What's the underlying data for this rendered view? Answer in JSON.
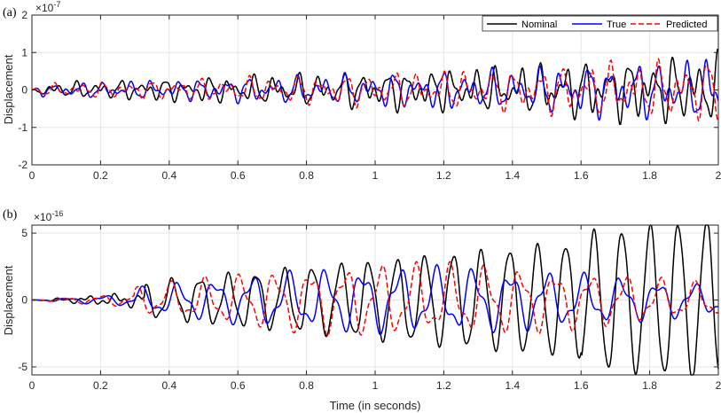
{
  "chart_data": [
    {
      "type": "line",
      "panel_label": "(a)",
      "exponent_label": "×10",
      "exponent_power": "-7",
      "xlabel": "",
      "ylabel": "Displacement",
      "xlim": [
        0,
        2
      ],
      "ylim": [
        -2,
        2
      ],
      "x_ticks": [
        0,
        0.2,
        0.4,
        0.6,
        0.8,
        1,
        1.2,
        1.4,
        1.6,
        1.8,
        2
      ],
      "x_tick_labels": [
        "0",
        "0.2",
        "0.4",
        "0.6",
        "0.8",
        "1",
        "1.2",
        "1.4",
        "1.6",
        "1.8",
        "2"
      ],
      "y_ticks": [
        -2,
        -1,
        0,
        1,
        2
      ],
      "y_tick_labels": [
        "-2",
        "-1",
        "0",
        "1",
        "2"
      ],
      "grid": true,
      "legend": {
        "position": "top-right",
        "orientation": "horizontal"
      },
      "series": [
        {
          "name": "Nominal",
          "color": "#000000",
          "dash": "solid"
        },
        {
          "name": "True",
          "color": "#0000ff",
          "dash": "solid"
        },
        {
          "name": "Predicted",
          "color": "#ff0000",
          "dash": "dashed"
        }
      ]
    },
    {
      "type": "line",
      "panel_label": "(b)",
      "exponent_label": "×10",
      "exponent_power": "-16",
      "xlabel": "Time (in seconds)",
      "ylabel": "Displacement",
      "xlim": [
        0,
        2
      ],
      "ylim": [
        -5.6,
        5.6
      ],
      "x_ticks": [
        0,
        0.2,
        0.4,
        0.6,
        0.8,
        1,
        1.2,
        1.4,
        1.6,
        1.8,
        2
      ],
      "x_tick_labels": [
        "0",
        "0.2",
        "0.4",
        "0.6",
        "0.8",
        "1",
        "1.2",
        "1.4",
        "1.6",
        "1.8",
        "2"
      ],
      "y_ticks": [
        -5,
        0,
        5
      ],
      "y_tick_labels": [
        "-5",
        "0",
        "5"
      ],
      "grid": true,
      "series": [
        {
          "name": "Nominal",
          "color": "#000000",
          "dash": "solid"
        },
        {
          "name": "True",
          "color": "#0000ff",
          "dash": "solid"
        },
        {
          "name": "Predicted",
          "color": "#ff0000",
          "dash": "dashed"
        }
      ]
    }
  ]
}
